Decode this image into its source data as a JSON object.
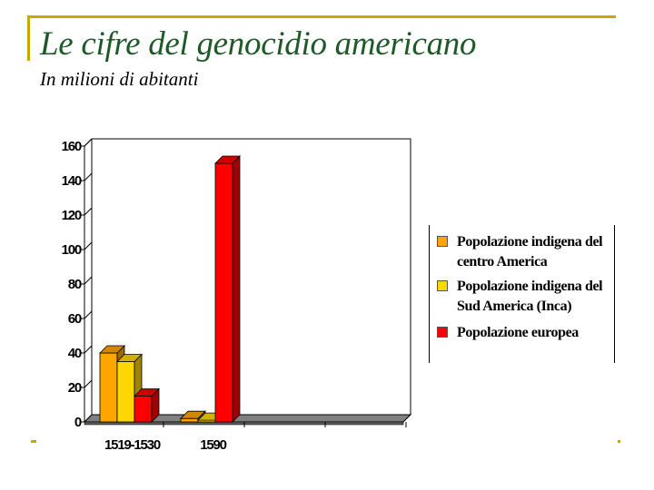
{
  "slide": {
    "title": "Le cifre del genocidio americano",
    "subtitle": "In milioni di abitanti"
  },
  "colors": {
    "frame": "#c8a800",
    "title": "#1e5a28",
    "series": [
      "#ffa500",
      "#ffd700",
      "#ff0000"
    ]
  },
  "chart_data": {
    "type": "bar",
    "style": "3d-clustered",
    "categories": [
      "1519-1530",
      "1590"
    ],
    "series": [
      {
        "name": "Popolazione indigena del centro America",
        "values": [
          40,
          2
        ]
      },
      {
        "name": "Popolazione indigena del Sud America (Inca)",
        "values": [
          35,
          1
        ]
      },
      {
        "name": "Popolazione europea",
        "values": [
          15,
          150
        ]
      }
    ],
    "yticks": [
      "0",
      "20",
      "40",
      "60",
      "80",
      "100",
      "120",
      "140",
      "160"
    ],
    "ylim": [
      0,
      160
    ],
    "grid": false,
    "legend": "right"
  }
}
